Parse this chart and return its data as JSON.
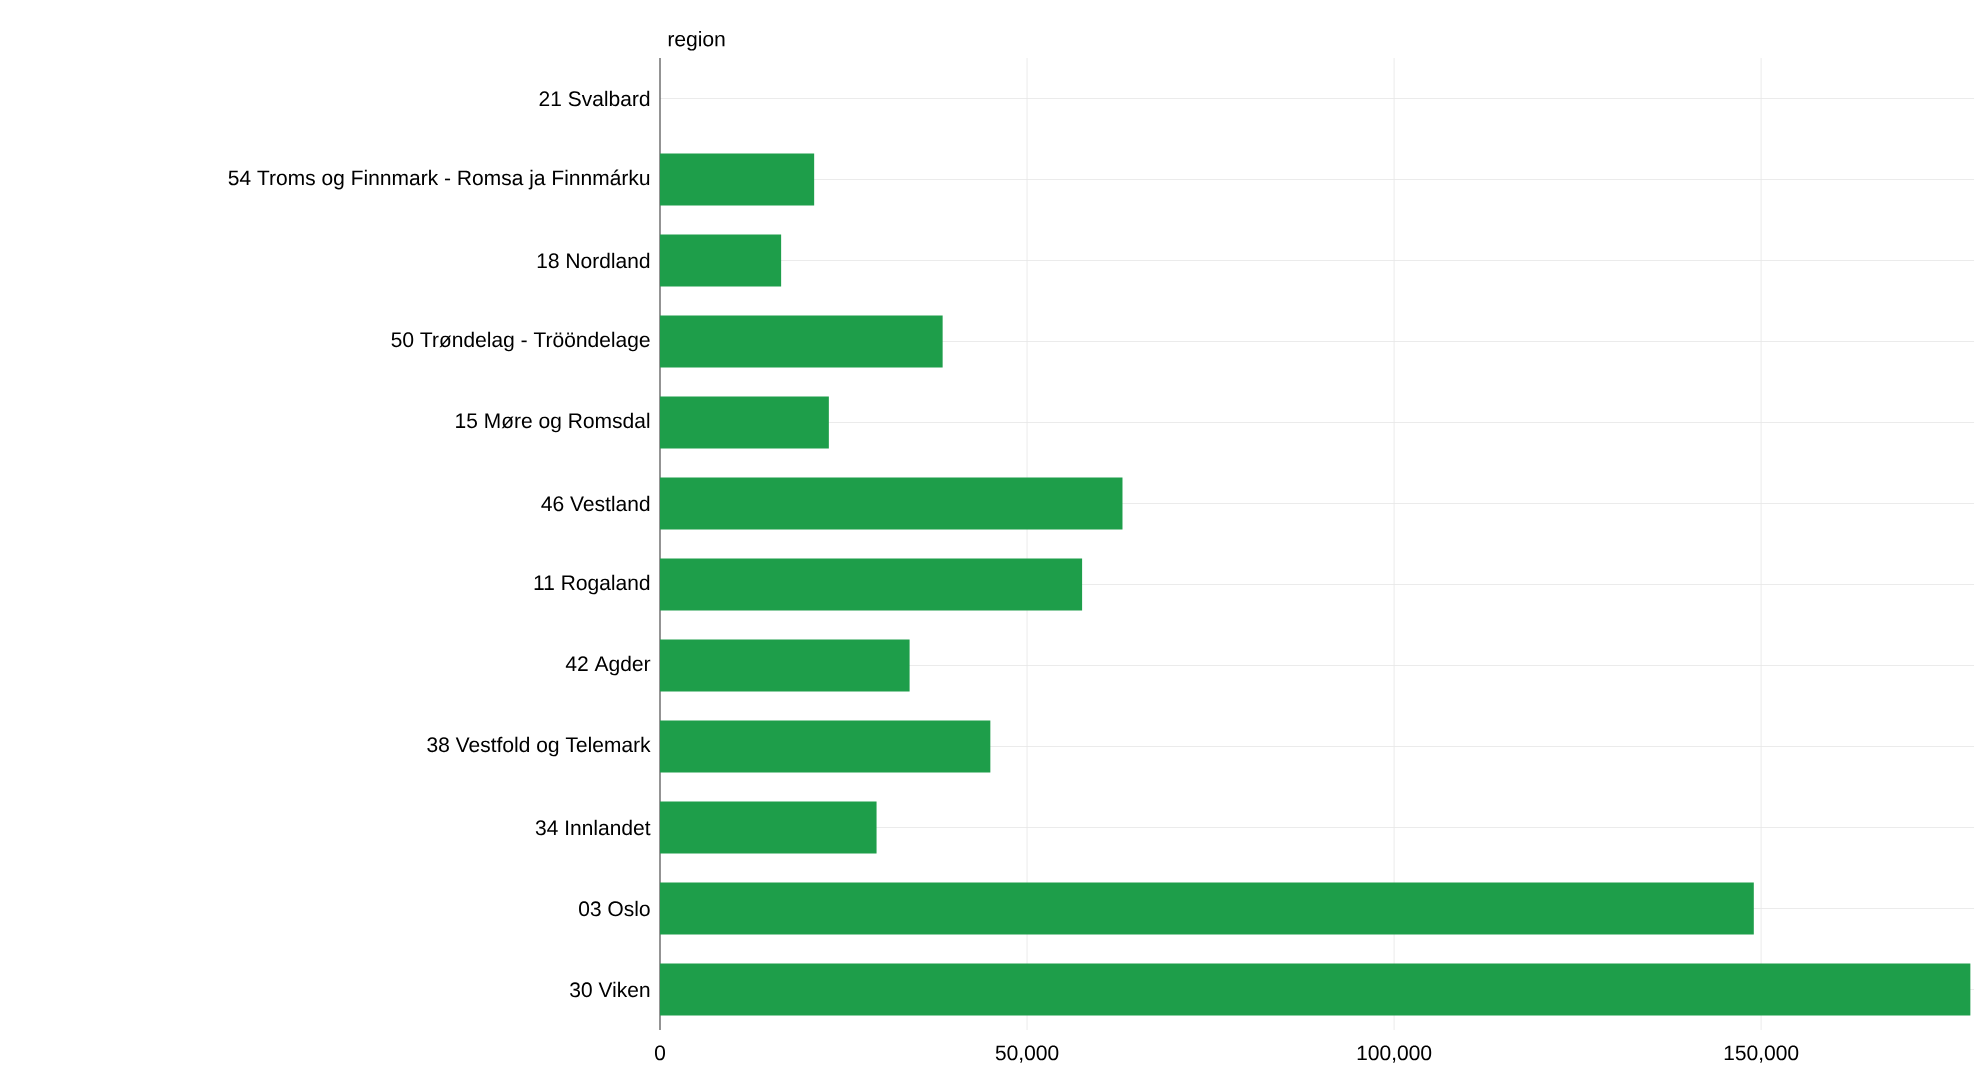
{
  "chart_data": {
    "type": "bar",
    "orientation": "horizontal",
    "ylabel": "region",
    "categories": [
      "21 Svalbard",
      "54 Troms og Finnmark - Romsa ja Finnmárku",
      "18 Nordland",
      "50 Trøndelag - Trööndelage",
      "15 Møre og Romsdal",
      "46 Vestland",
      "11 Rogaland",
      "42 Agder",
      "38 Vestfold og Telemark",
      "34 Innlandet",
      "03 Oslo",
      "30 Viken"
    ],
    "values": [
      0,
      21000,
      16500,
      38500,
      23000,
      63000,
      57500,
      34000,
      45000,
      29500,
      149000,
      178500
    ],
    "color": "#1e9e4a",
    "xlim": [
      0,
      179000
    ],
    "xticks": [
      {
        "value": 0,
        "label": "0"
      },
      {
        "value": 50000,
        "label": "50,000"
      },
      {
        "value": 100000,
        "label": "100,000"
      },
      {
        "value": 150000,
        "label": "150,000"
      }
    ],
    "grid": true
  }
}
